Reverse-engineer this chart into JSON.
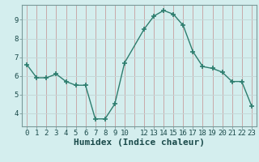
{
  "x": [
    0,
    1,
    2,
    3,
    4,
    5,
    6,
    7,
    8,
    9,
    10,
    12,
    13,
    14,
    15,
    16,
    17,
    18,
    19,
    20,
    21,
    22,
    23
  ],
  "y": [
    6.6,
    5.9,
    5.9,
    6.1,
    5.7,
    5.5,
    5.5,
    3.7,
    3.7,
    4.5,
    6.7,
    8.5,
    9.2,
    9.5,
    9.3,
    8.7,
    7.3,
    6.5,
    6.4,
    6.2,
    5.7,
    5.7,
    4.4
  ],
  "line_color": "#2d7d6e",
  "marker": "+",
  "marker_size": 4,
  "marker_linewidth": 1.2,
  "bg_color": "#d4eeee",
  "grid_color_h": "#c4d8d8",
  "grid_color_v": "#c8a8a8",
  "xlabel": "Humidex (Indice chaleur)",
  "xlabel_fontsize": 8,
  "xlabel_fontweight": "bold",
  "ylim": [
    3.3,
    9.8
  ],
  "xlim": [
    -0.5,
    23.5
  ],
  "yticks": [
    4,
    5,
    6,
    7,
    8,
    9
  ],
  "xtick_labels": [
    "0",
    "1",
    "2",
    "3",
    "4",
    "5",
    "6",
    "7",
    "8",
    "9",
    "10",
    "",
    "12",
    "13",
    "14",
    "15",
    "16",
    "17",
    "18",
    "19",
    "20",
    "21",
    "22",
    "23"
  ],
  "xtick_positions": [
    0,
    1,
    2,
    3,
    4,
    5,
    6,
    7,
    8,
    9,
    10,
    11,
    12,
    13,
    14,
    15,
    16,
    17,
    18,
    19,
    20,
    21,
    22,
    23
  ],
  "tick_fontsize": 6.5,
  "spine_color": "#7a9a9a",
  "tick_color": "#2d5a5a",
  "label_color": "#1a4a4a"
}
